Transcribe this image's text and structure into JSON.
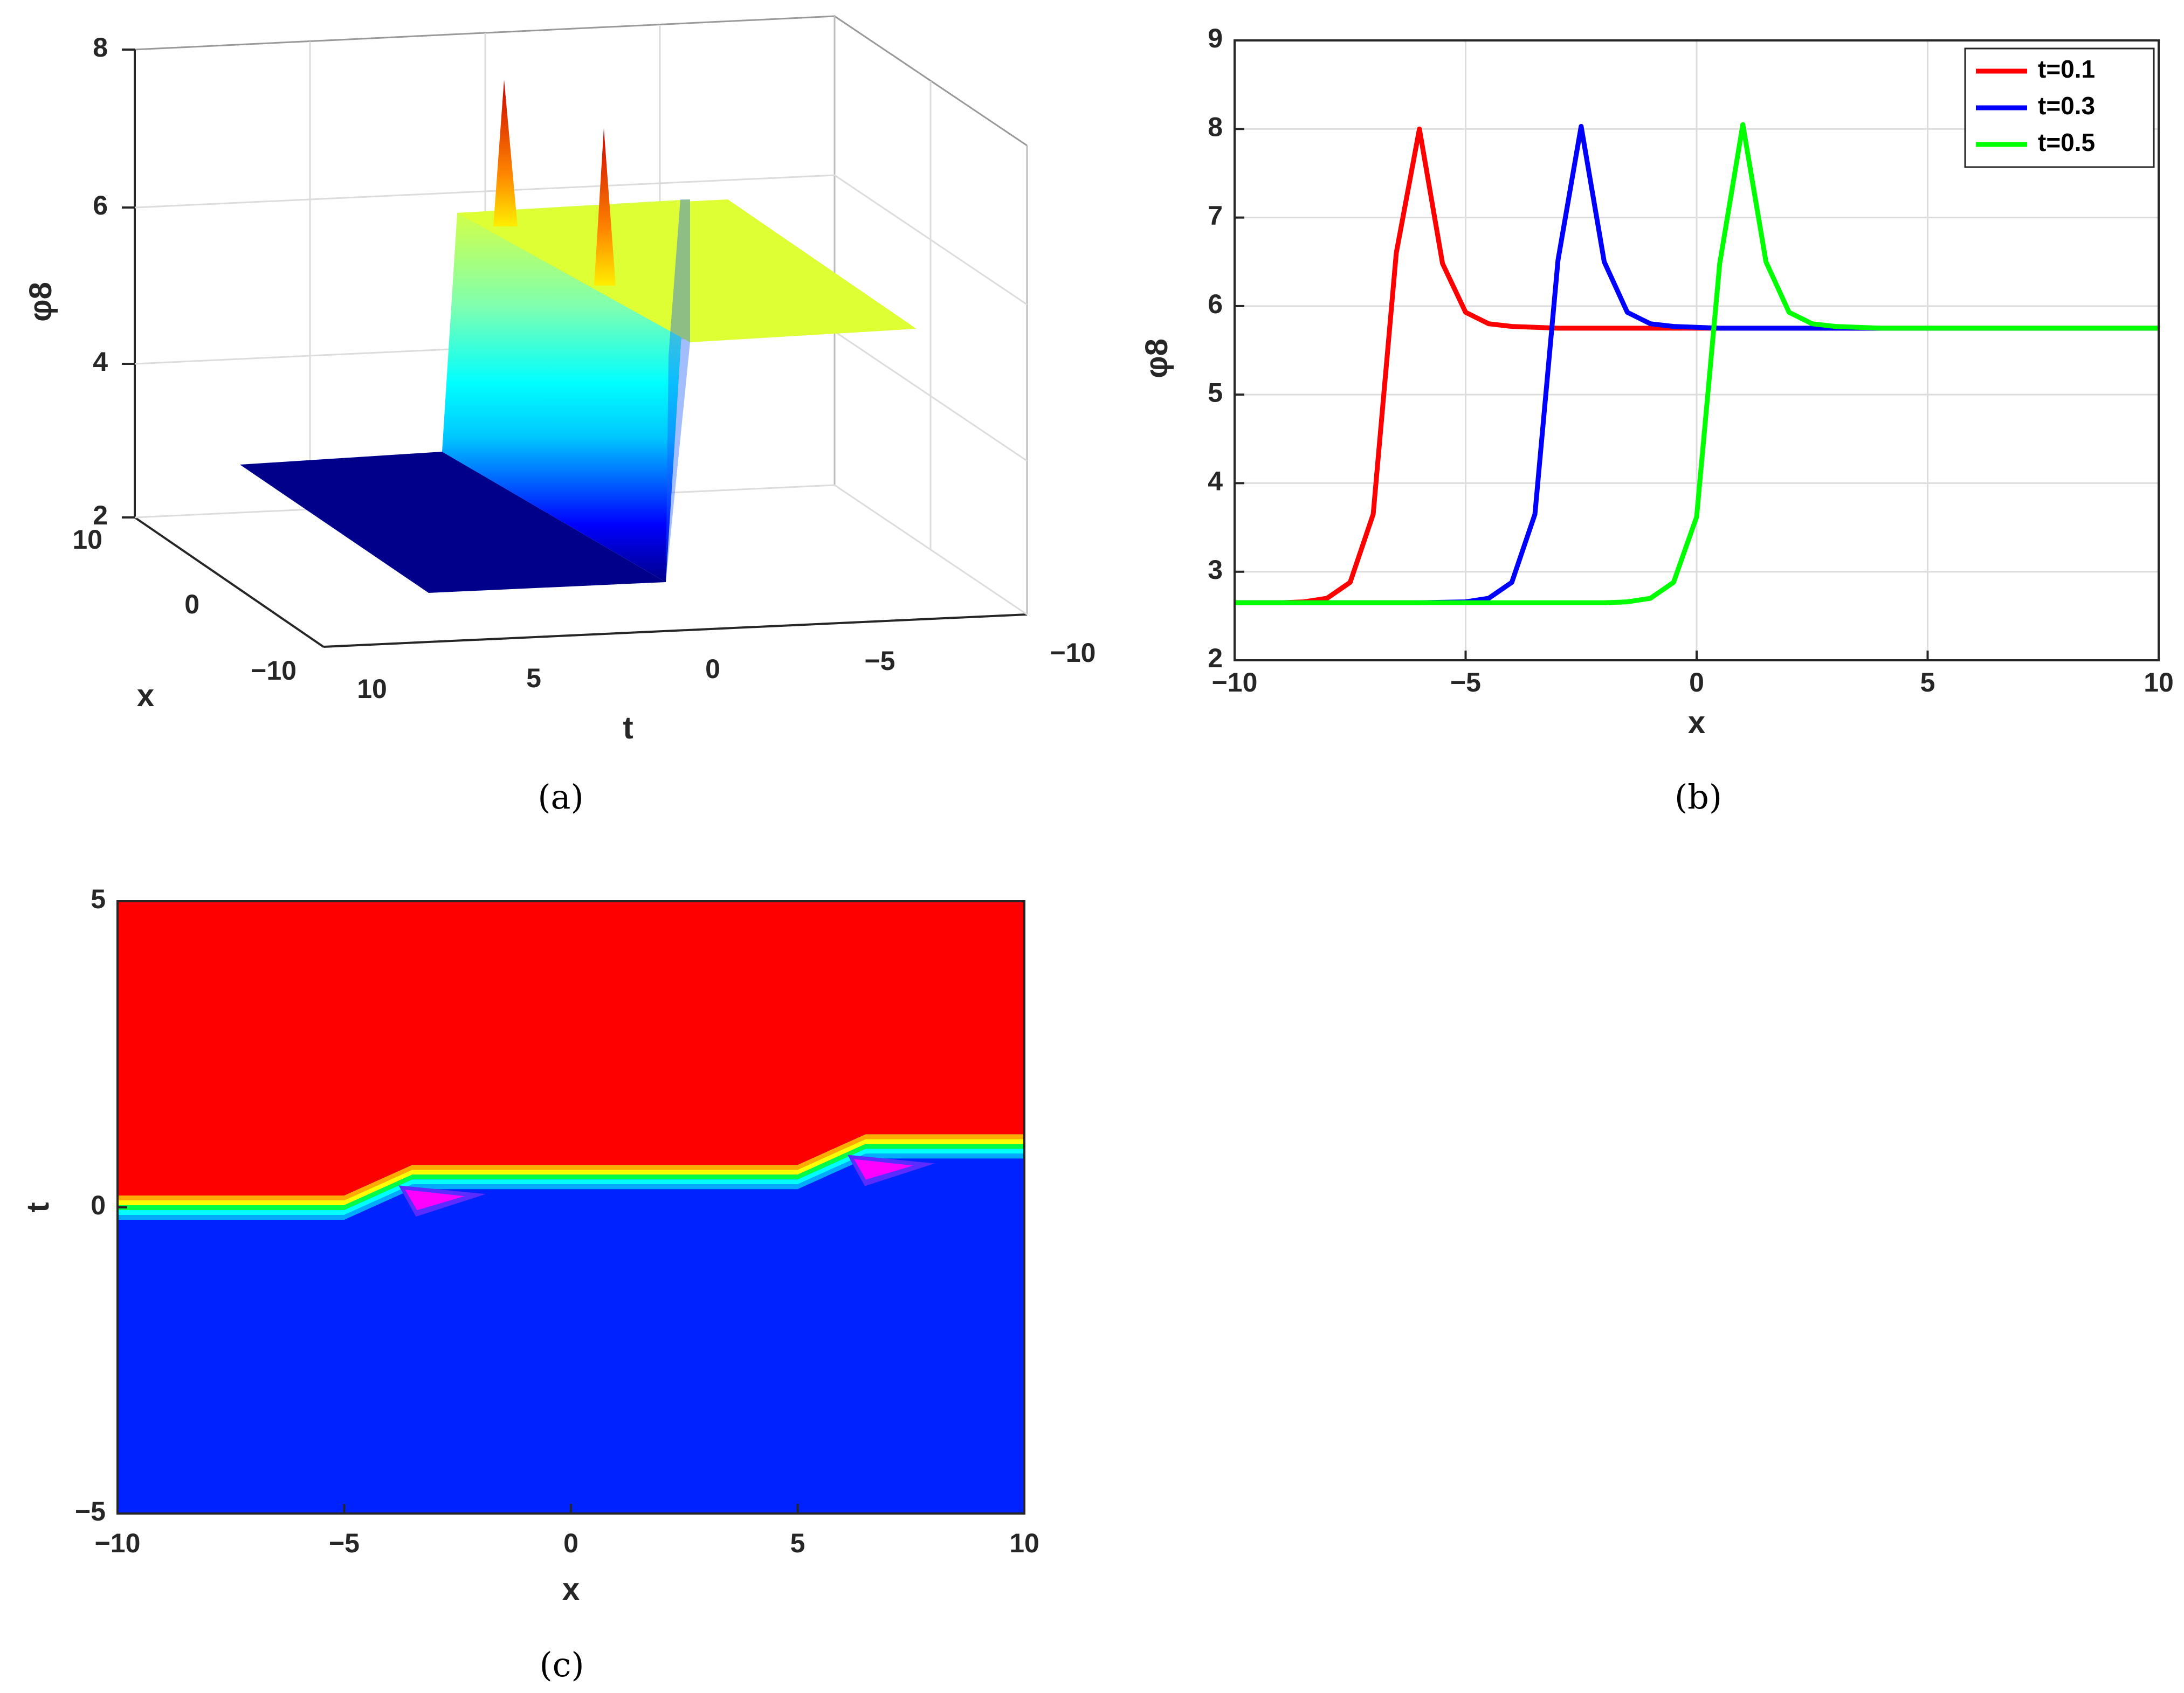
{
  "chart_data": [
    {
      "panel": "a",
      "type": "surface",
      "caption": "(a)",
      "xlabel": "t",
      "ylabel": "x",
      "zlabel": "φ8",
      "t_ticks": [
        "10",
        "5",
        "0",
        "−5",
        "−10"
      ],
      "x_ticks": [
        "10",
        "0",
        "−10"
      ],
      "z_ticks": [
        "8",
        "6",
        "4",
        "2"
      ],
      "t_range": [
        -10,
        10
      ],
      "x_range": [
        -10,
        10
      ],
      "z_range": [
        2,
        8
      ],
      "low_plateau": 2.65,
      "high_plateau": 5.75,
      "peak_value": 8.0,
      "colormap": "jet",
      "grid": true
    },
    {
      "panel": "b",
      "type": "line",
      "caption": "(b)",
      "xlabel": "x",
      "ylabel": "φ8",
      "xlim": [
        -10,
        10
      ],
      "ylim": [
        2,
        9
      ],
      "x_ticks": [
        "−10",
        "−5",
        "0",
        "5",
        "10"
      ],
      "y_ticks": [
        "2",
        "3",
        "4",
        "5",
        "6",
        "7",
        "8",
        "9"
      ],
      "grid": true,
      "legend_position": "top-right",
      "series": [
        {
          "name": "t=0.1",
          "color": "#ff0000",
          "x": [
            -10,
            -9.5,
            -9,
            -8.5,
            -8,
            -7.5,
            -7,
            -6.5,
            -6,
            -5.5,
            -5,
            -4.5,
            -4,
            -3.5,
            -3,
            -2.5,
            -2,
            -1,
            0,
            2,
            4,
            6,
            8,
            10
          ],
          "y": [
            2.65,
            2.65,
            2.65,
            2.66,
            2.7,
            2.88,
            3.65,
            6.6,
            8.0,
            6.48,
            5.93,
            5.8,
            5.77,
            5.76,
            5.75,
            5.75,
            5.75,
            5.75,
            5.75,
            5.75,
            5.75,
            5.75,
            5.75,
            5.75
          ]
        },
        {
          "name": "t=0.3",
          "color": "#0000ff",
          "x": [
            -10,
            -8,
            -6,
            -5,
            -4.5,
            -4,
            -3.5,
            -3,
            -2.5,
            -2,
            -1.5,
            -1,
            -0.5,
            0,
            0.5,
            1,
            2,
            4,
            6,
            8,
            10
          ],
          "y": [
            2.65,
            2.65,
            2.65,
            2.66,
            2.7,
            2.88,
            3.65,
            6.52,
            8.03,
            6.5,
            5.93,
            5.8,
            5.77,
            5.76,
            5.75,
            5.75,
            5.75,
            5.75,
            5.75,
            5.75,
            5.75
          ]
        },
        {
          "name": "t=0.5",
          "color": "#00ff00",
          "x": [
            -10,
            -8,
            -6,
            -4,
            -2,
            -1.5,
            -1,
            -0.5,
            0,
            0.5,
            1,
            1.5,
            2,
            2.5,
            3,
            3.5,
            4,
            5,
            6,
            8,
            10
          ],
          "y": [
            2.65,
            2.65,
            2.65,
            2.65,
            2.65,
            2.66,
            2.7,
            2.88,
            3.62,
            6.48,
            8.05,
            6.5,
            5.93,
            5.8,
            5.77,
            5.76,
            5.75,
            5.75,
            5.75,
            5.75,
            5.75
          ]
        }
      ]
    },
    {
      "panel": "c",
      "type": "heatmap",
      "caption": "(c)",
      "xlabel": "x",
      "ylabel": "t",
      "xlim": [
        -10,
        10
      ],
      "ylim": [
        -5,
        5
      ],
      "x_ticks": [
        "−10",
        "−5",
        "0",
        "5",
        "10"
      ],
      "y_ticks": [
        "5",
        "0",
        "−5"
      ],
      "colors": {
        "high": "#ff0000",
        "low": "#0022ff",
        "band": [
          "#ffaa00",
          "#ffff00",
          "#00ff44",
          "#00ffff",
          "#00aaff"
        ],
        "spot": "#ff00ff"
      },
      "front_t": [
        0.0,
        0.0,
        0.5,
        0.5,
        0.5,
        1.0,
        1.0
      ],
      "front_x": [
        -10,
        -5,
        -3.5,
        0,
        5,
        6.5,
        10
      ],
      "spots": [
        {
          "x": -3.3,
          "t": 0.2
        },
        {
          "x": 6.6,
          "t": 0.7
        }
      ]
    }
  ]
}
